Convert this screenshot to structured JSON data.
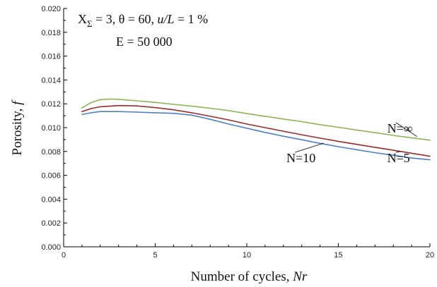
{
  "chart_data": {
    "type": "line",
    "title": "",
    "xlabel_prefix": "Number of cycles, ",
    "xlabel_var": "Nr",
    "ylabel_prefix": "Porosity, ",
    "ylabel_var": "f",
    "xlim": [
      0,
      20
    ],
    "ylim": [
      0,
      0.02
    ],
    "x_ticks": [
      0,
      5,
      10,
      15,
      20
    ],
    "y_ticks": [
      0.0,
      0.002,
      0.004,
      0.006,
      0.008,
      0.01,
      0.012,
      0.014,
      0.016,
      0.018,
      0.02
    ],
    "y_tick_labels": [
      "0.000",
      "0.002",
      "0.004",
      "0.006",
      "0.008",
      "0.010",
      "0.012",
      "0.014",
      "0.016",
      "0.018",
      "0.020"
    ],
    "grid": false,
    "annotations": {
      "line1_x": "X",
      "line1_sub": "Σ",
      "line1_rest_a": " = 3, θ = 60, ",
      "line1_rest_b": "u/L",
      "line1_rest_c": " = 1 %",
      "line2": "E = 50 000"
    },
    "series": [
      {
        "name": "N=∞",
        "color": "#8db354",
        "x": [
          1,
          1.5,
          2,
          2.5,
          3,
          4,
          5,
          6,
          7,
          8,
          9,
          10,
          11,
          12,
          13,
          14,
          15,
          16,
          17,
          18,
          19,
          20
        ],
        "y": [
          0.01165,
          0.0121,
          0.01235,
          0.0124,
          0.01238,
          0.01225,
          0.01212,
          0.01195,
          0.0118,
          0.01163,
          0.01143,
          0.01118,
          0.01095,
          0.01072,
          0.0105,
          0.01025,
          0.01003,
          0.0098,
          0.00958,
          0.00935,
          0.00915,
          0.00895
        ]
      },
      {
        "name": "N=5",
        "color": "#9a2b2b",
        "x": [
          1,
          1.5,
          2,
          2.5,
          3,
          4,
          5,
          6,
          7,
          8,
          9,
          10,
          11,
          12,
          13,
          14,
          15,
          16,
          17,
          18,
          19,
          20
        ],
        "y": [
          0.01135,
          0.0116,
          0.01175,
          0.0118,
          0.01185,
          0.01182,
          0.01168,
          0.0115,
          0.01125,
          0.01095,
          0.01065,
          0.0103,
          0.01,
          0.0097,
          0.0094,
          0.00912,
          0.00885,
          0.0086,
          0.00835,
          0.0081,
          0.00785,
          0.0076
        ]
      },
      {
        "name": "N=10",
        "color": "#4c7fc8",
        "x": [
          1,
          1.5,
          2,
          2.5,
          3,
          4,
          5,
          6,
          7,
          8,
          9,
          10,
          11,
          12,
          13,
          14,
          15,
          16,
          17,
          18,
          19,
          20
        ],
        "y": [
          0.0111,
          0.01125,
          0.01135,
          0.01135,
          0.01135,
          0.0113,
          0.01125,
          0.0112,
          0.01105,
          0.0107,
          0.0103,
          0.00995,
          0.0096,
          0.00928,
          0.00898,
          0.00868,
          0.0084,
          0.00815,
          0.0079,
          0.00768,
          0.00745,
          0.0073
        ]
      }
    ],
    "series_labels": [
      {
        "series": "N=∞",
        "text": "N=∞",
        "at_x": 19.3,
        "at_y": 0.00925,
        "label_x": 17.9,
        "label_y": 0.0096
      },
      {
        "series": "N=10",
        "text": "N=10",
        "at_x": 14.2,
        "at_y": 0.0087,
        "label_x": 12.4,
        "label_y": 0.0071
      },
      {
        "series": "N=5",
        "text": "N=5",
        "at_x": 18.4,
        "at_y": 0.008,
        "label_x": 17.9,
        "label_y": 0.0071
      }
    ]
  }
}
